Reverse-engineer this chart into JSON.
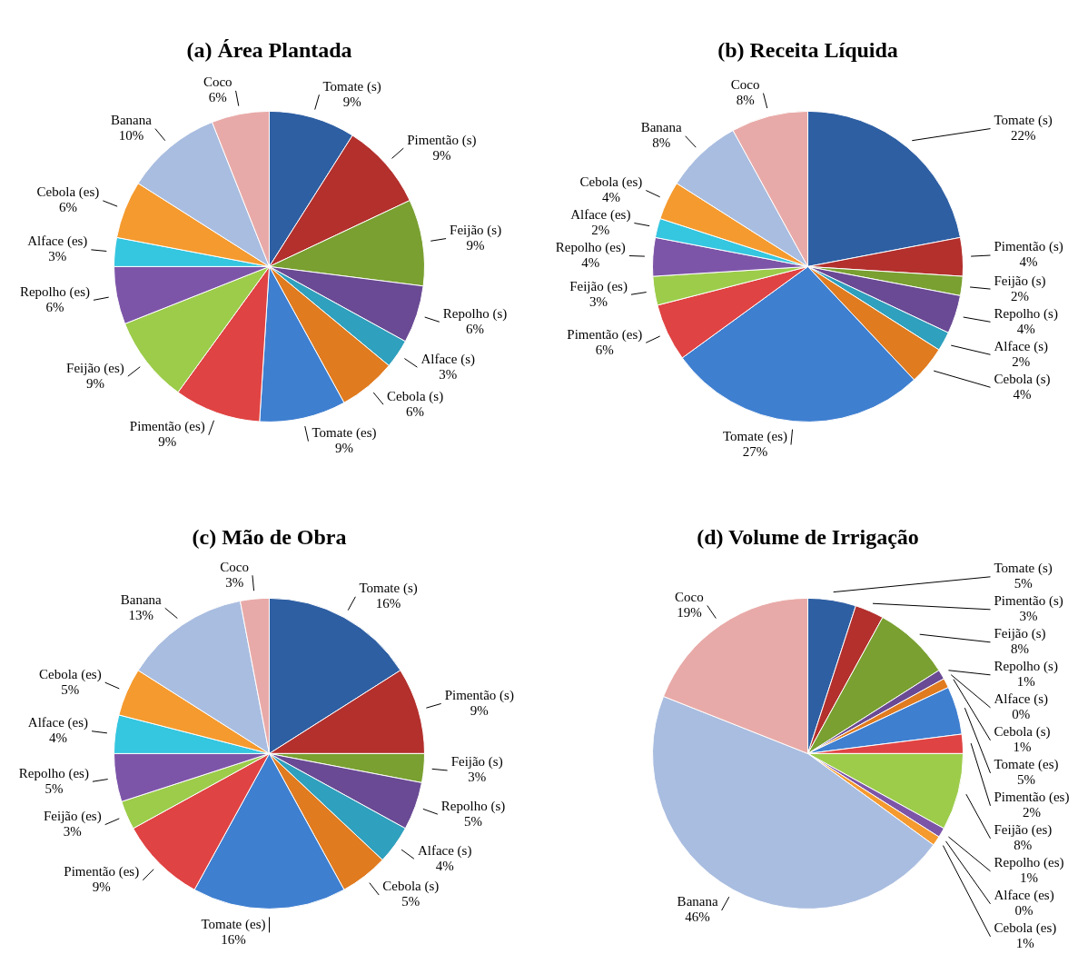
{
  "chart_data": [
    {
      "type": "pie",
      "title": "(a) Área Plantada",
      "categories": [
        "Tomate (s)",
        "Pimentão (s)",
        "Feijão (s)",
        "Repolho (s)",
        "Alface (s)",
        "Cebola (s)",
        "Tomate (es)",
        "Pimentão (es)",
        "Feijão (es)",
        "Repolho (es)",
        "Alface (es)",
        "Cebola (es)",
        "Banana",
        "Coco"
      ],
      "values": [
        9,
        9,
        9,
        6,
        3,
        6,
        9,
        9,
        9,
        6,
        3,
        6,
        10,
        6
      ],
      "value_labels": [
        "9%",
        "9%",
        "9%",
        "6%",
        "3%",
        "6%",
        "9%",
        "9%",
        "9%",
        "6%",
        "3%",
        "6%",
        "10%",
        "6%"
      ],
      "colors": [
        "#2e5fa3",
        "#b3302d",
        "#79a030",
        "#6a4a94",
        "#2fa0bd",
        "#e07b1f",
        "#3f7fd0",
        "#e04343",
        "#9ccc4a",
        "#7d55a8",
        "#35c6e0",
        "#f59a2e",
        "#a9bde0",
        "#e8aaa8"
      ],
      "legend": false
    },
    {
      "type": "pie",
      "title": "(b) Receita Líquida",
      "categories": [
        "Tomate (s)",
        "Pimentão (s)",
        "Feijão (s)",
        "Repolho (s)",
        "Alface (s)",
        "Cebola (s)",
        "Tomate (es)",
        "Pimentão (es)",
        "Feijão (es)",
        "Repolho (es)",
        "Alface (es)",
        "Cebola (es)",
        "Banana",
        "Coco"
      ],
      "values": [
        22,
        4,
        2,
        4,
        2,
        4,
        27,
        6,
        3,
        4,
        2,
        4,
        8,
        8
      ],
      "value_labels": [
        "22%",
        "4%",
        "2%",
        "4%",
        "2%",
        "4%",
        "27%",
        "6%",
        "3%",
        "4%",
        "2%",
        "4%",
        "8%",
        "8%"
      ],
      "colors": [
        "#2e5fa3",
        "#b3302d",
        "#79a030",
        "#6a4a94",
        "#2fa0bd",
        "#e07b1f",
        "#3f7fd0",
        "#e04343",
        "#9ccc4a",
        "#7d55a8",
        "#35c6e0",
        "#f59a2e",
        "#a9bde0",
        "#e8aaa8"
      ],
      "legend": false
    },
    {
      "type": "pie",
      "title": "(c) Mão de Obra",
      "categories": [
        "Tomate (s)",
        "Pimentão (s)",
        "Feijão (s)",
        "Repolho (s)",
        "Alface (s)",
        "Cebola (s)",
        "Tomate (es)",
        "Pimentão (es)",
        "Feijão (es)",
        "Repolho (es)",
        "Alface (es)",
        "Cebola (es)",
        "Banana",
        "Coco"
      ],
      "values": [
        16,
        9,
        3,
        5,
        4,
        5,
        16,
        9,
        3,
        5,
        4,
        5,
        13,
        3
      ],
      "value_labels": [
        "16%",
        "9%",
        "3%",
        "5%",
        "4%",
        "5%",
        "16%",
        "9%",
        "3%",
        "5%",
        "4%",
        "5%",
        "13%",
        "3%"
      ],
      "colors": [
        "#2e5fa3",
        "#b3302d",
        "#79a030",
        "#6a4a94",
        "#2fa0bd",
        "#e07b1f",
        "#3f7fd0",
        "#e04343",
        "#9ccc4a",
        "#7d55a8",
        "#35c6e0",
        "#f59a2e",
        "#a9bde0",
        "#e8aaa8"
      ],
      "legend": false
    },
    {
      "type": "pie",
      "title": "(d) Volume de Irrigação",
      "categories": [
        "Tomate (s)",
        "Pimentão (s)",
        "Feijão (s)",
        "Repolho (s)",
        "Alface (s)",
        "Cebola (s)",
        "Tomate (es)",
        "Pimentão (es)",
        "Feijão (es)",
        "Repolho (es)",
        "Alface (es)",
        "Cebola (es)",
        "Banana",
        "Coco"
      ],
      "values": [
        5,
        3,
        8,
        1,
        0,
        1,
        5,
        2,
        8,
        1,
        0,
        1,
        46,
        19
      ],
      "value_labels": [
        "5%",
        "3%",
        "8%",
        "1%",
        "0%",
        "1%",
        "5%",
        "2%",
        "8%",
        "1%",
        "0%",
        "1%",
        "46%",
        "19%"
      ],
      "colors": [
        "#2e5fa3",
        "#b3302d",
        "#79a030",
        "#6a4a94",
        "#2fa0bd",
        "#e07b1f",
        "#3f7fd0",
        "#e04343",
        "#9ccc4a",
        "#7d55a8",
        "#35c6e0",
        "#f59a2e",
        "#a9bde0",
        "#e8aaa8"
      ],
      "legend": false
    }
  ]
}
